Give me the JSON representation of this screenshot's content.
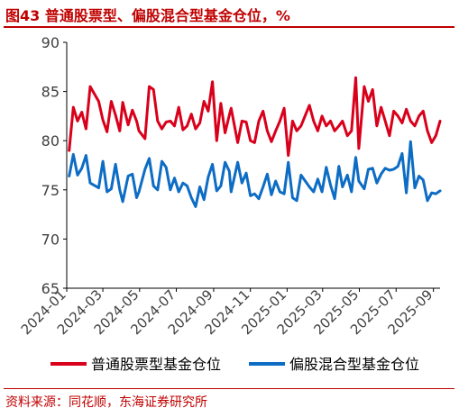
{
  "title": "图43  普通股票型、偏股混合型基金仓位，%",
  "source": "资料来源：同花顺，东海证券研究所",
  "chart_data": {
    "type": "line",
    "title": "图43  普通股票型、偏股混合型基金仓位，%",
    "xlabel": "",
    "ylabel": "",
    "ylim": [
      65,
      90
    ],
    "yticks": [
      65,
      70,
      75,
      80,
      85,
      90
    ],
    "xrange": [
      "2024-01-01",
      "2025-09-12"
    ],
    "xticks": [
      "2024-01",
      "2024-03",
      "2024-05",
      "2024-07",
      "2024-09",
      "2024-11",
      "2025-01",
      "2025-03",
      "2025-05",
      "2025-07",
      "2025-09"
    ],
    "grid": false,
    "legend_position": "bottom",
    "x": [
      "2024-01-05",
      "2024-01-12",
      "2024-01-19",
      "2024-01-26",
      "2024-02-02",
      "2024-02-09",
      "2024-02-23",
      "2024-03-01",
      "2024-03-08",
      "2024-03-15",
      "2024-03-22",
      "2024-03-29",
      "2024-04-03",
      "2024-04-12",
      "2024-04-19",
      "2024-04-26",
      "2024-04-30",
      "2024-05-10",
      "2024-05-17",
      "2024-05-24",
      "2024-05-31",
      "2024-06-07",
      "2024-06-14",
      "2024-06-21",
      "2024-06-28",
      "2024-07-05",
      "2024-07-12",
      "2024-07-19",
      "2024-07-26",
      "2024-08-02",
      "2024-08-09",
      "2024-08-16",
      "2024-08-23",
      "2024-08-30",
      "2024-09-06",
      "2024-09-13",
      "2024-09-20",
      "2024-09-27",
      "2024-09-30",
      "2024-10-11",
      "2024-10-18",
      "2024-10-25",
      "2024-11-01",
      "2024-11-08",
      "2024-11-15",
      "2024-11-22",
      "2024-11-29",
      "2024-12-06",
      "2024-12-13",
      "2024-12-20",
      "2024-12-27",
      "2025-01-03",
      "2025-01-10",
      "2025-01-17",
      "2025-01-24",
      "2025-02-07",
      "2025-02-14",
      "2025-02-21",
      "2025-02-28",
      "2025-03-07",
      "2025-03-14",
      "2025-03-21",
      "2025-03-28",
      "2025-04-03",
      "2025-04-11",
      "2025-04-18",
      "2025-04-25",
      "2025-04-30",
      "2025-05-09",
      "2025-05-16",
      "2025-05-23",
      "2025-05-30",
      "2025-06-06",
      "2025-06-13",
      "2025-06-20",
      "2025-06-27",
      "2025-07-04",
      "2025-07-11",
      "2025-07-18",
      "2025-07-25",
      "2025-08-01",
      "2025-08-08",
      "2025-08-15",
      "2025-08-22",
      "2025-08-29",
      "2025-09-05",
      "2025-09-12"
    ],
    "series": [
      {
        "name": "普通股票型基金仓位",
        "color": "#d9001b",
        "values": [
          79.0,
          83.4,
          82.0,
          82.9,
          81.2,
          85.5,
          84.0,
          82.1,
          80.9,
          84.0,
          82.6,
          81.0,
          83.9,
          81.6,
          83.1,
          82.0,
          81.0,
          80.2,
          85.5,
          85.2,
          82.0,
          81.2,
          81.9,
          82.0,
          81.5,
          83.4,
          81.1,
          81.5,
          82.7,
          81.2,
          81.8,
          84.0,
          83.0,
          86.0,
          80.0,
          83.8,
          80.8,
          82.6,
          83.3,
          79.8,
          82.0,
          81.9,
          80.0,
          79.8,
          82.0,
          83.0,
          81.0,
          79.9,
          81.0,
          82.0,
          83.3,
          78.5,
          82.0,
          81.0,
          81.5,
          83.6,
          82.0,
          81.0,
          82.5,
          81.5,
          82.0,
          81.0,
          81.5,
          82.0,
          80.5,
          81.0,
          86.4,
          79.2,
          85.5,
          84.0,
          85.2,
          81.5,
          83.4,
          82.0,
          80.5,
          83.0,
          82.5,
          81.8,
          83.2,
          82.0,
          81.5,
          82.5,
          83.0,
          81.0,
          79.8,
          80.5,
          82.0
        ]
      },
      {
        "name": "偏股混合型基金仓位",
        "color": "#0d6cc4",
        "values": [
          76.4,
          78.6,
          76.5,
          77.2,
          78.5,
          75.7,
          75.2,
          77.9,
          74.8,
          75.1,
          77.6,
          75.0,
          73.8,
          76.4,
          76.6,
          74.2,
          74.8,
          77.1,
          78.2,
          75.4,
          75.0,
          77.9,
          77.3,
          75.0,
          76.2,
          74.8,
          75.7,
          75.4,
          74.2,
          73.3,
          75.3,
          74.0,
          76.3,
          77.6,
          74.9,
          75.4,
          77.8,
          76.9,
          74.8,
          77.8,
          75.7,
          76.7,
          74.4,
          74.6,
          74.1,
          75.3,
          76.6,
          74.5,
          75.9,
          74.8,
          74.6,
          77.8,
          74.2,
          73.9,
          76.5,
          75.3,
          74.8,
          76.1,
          74.8,
          77.3,
          75.5,
          74.1,
          77.4,
          75.3,
          76.5,
          74.8,
          78.3,
          75.9,
          75.1,
          77.1,
          77.2,
          75.7,
          76.6,
          77.2,
          77.0,
          77.1,
          77.4,
          78.7,
          74.7,
          79.9,
          75.2,
          76.4,
          76.0,
          73.9,
          74.7,
          74.6,
          74.9
        ]
      }
    ]
  }
}
